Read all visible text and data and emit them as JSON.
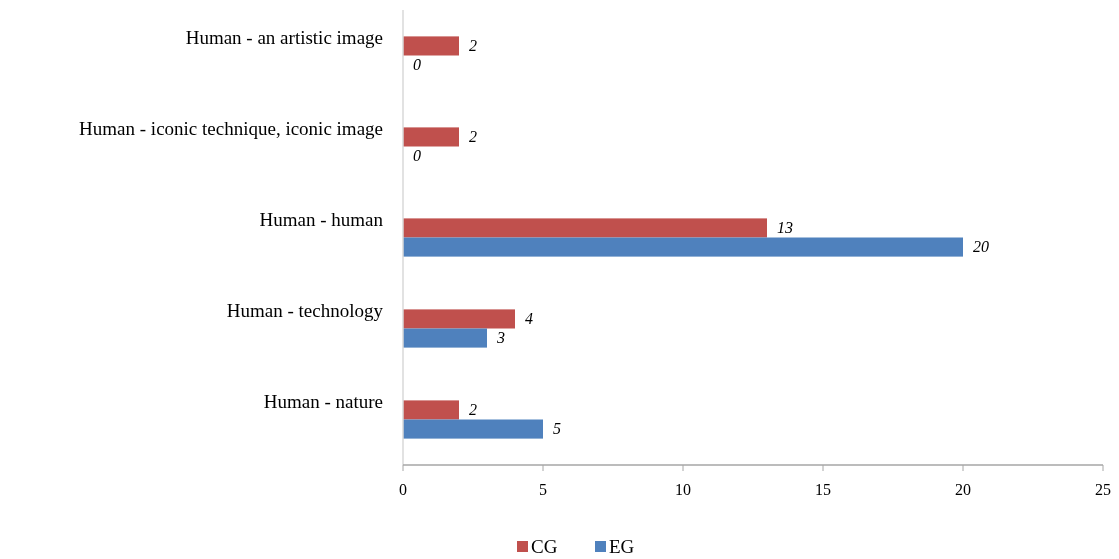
{
  "chart_data": {
    "type": "bar",
    "orientation": "horizontal",
    "categories": [
      "Human - an artistic image",
      "Human - iconic technique, iconic image",
      "Human - human",
      "Human - technology",
      "Human - nature"
    ],
    "series": [
      {
        "name": "CG",
        "color": "#c0504d",
        "values": [
          2,
          2,
          13,
          4,
          2
        ]
      },
      {
        "name": "EG",
        "color": "#4f81bd",
        "values": [
          0,
          0,
          20,
          3,
          5
        ]
      }
    ],
    "xlim": [
      0,
      25
    ],
    "xticks": [
      0,
      5,
      10,
      15,
      20,
      25
    ],
    "data_labels": true,
    "legend": "bottom",
    "grid": false
  }
}
